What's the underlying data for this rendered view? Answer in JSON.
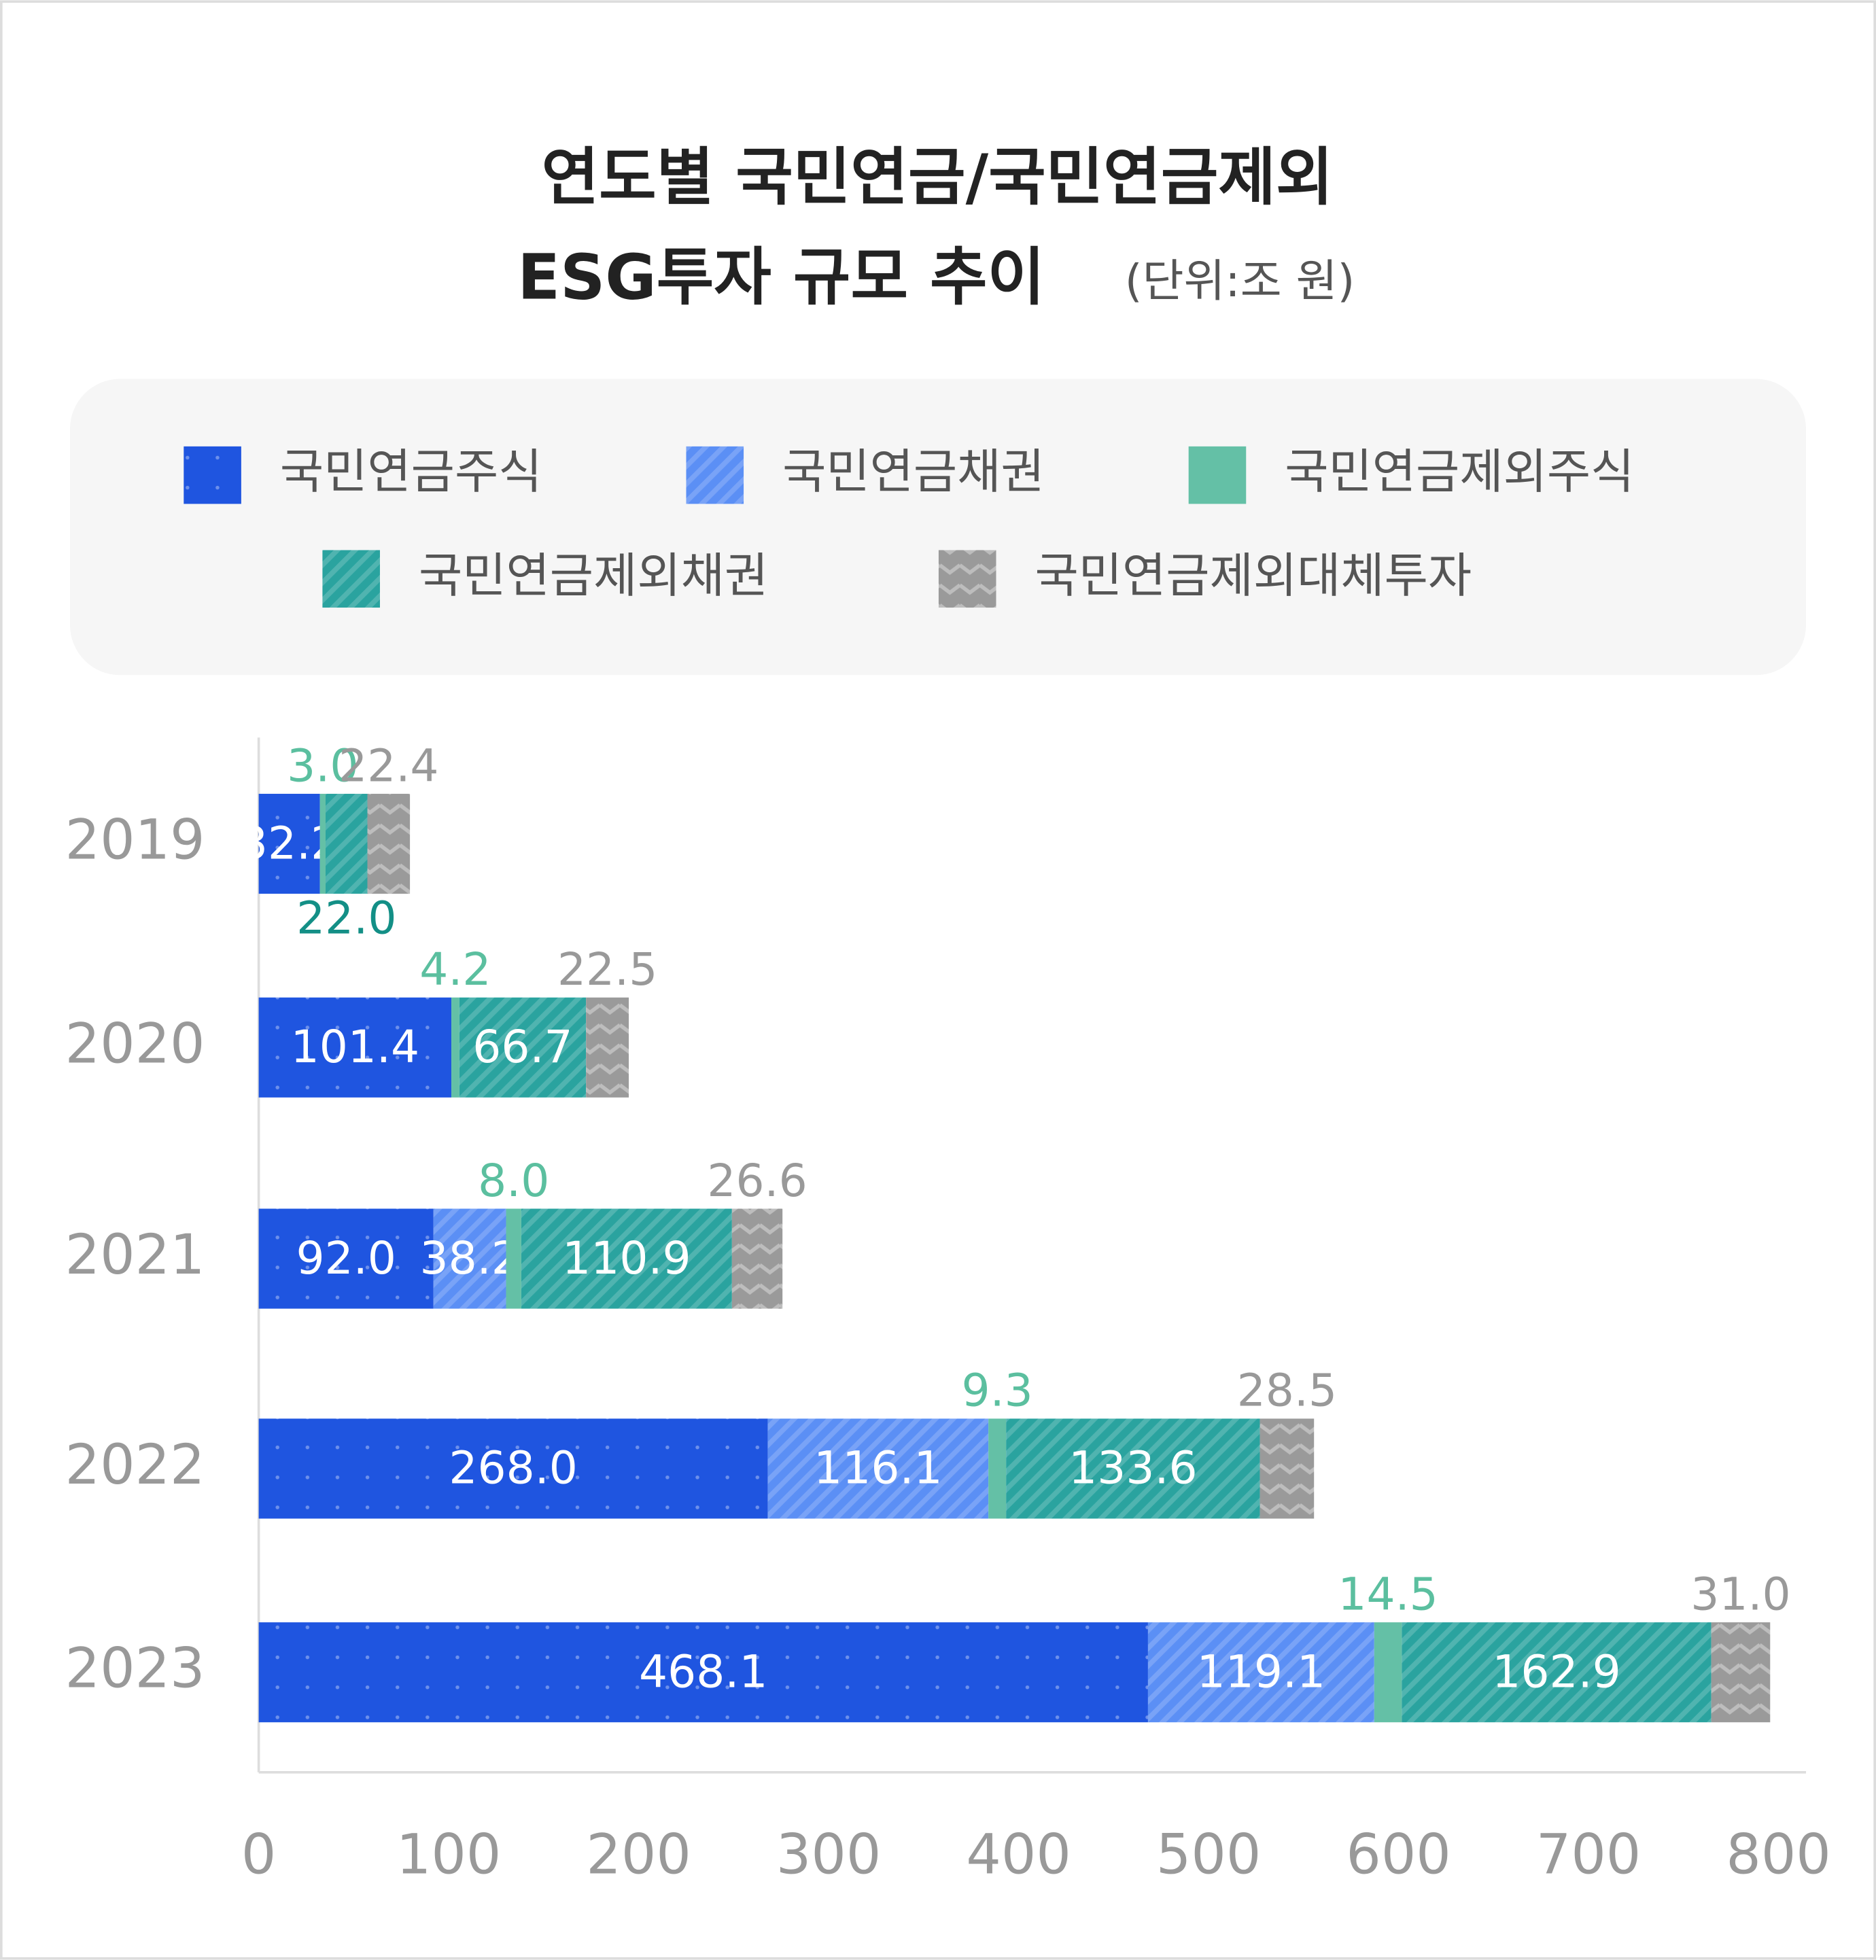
{
  "chart_data": {
    "type": "stacked-bar-horizontal",
    "title_lines": [
      "연도별 국민연금/국민연금제외",
      "ESG투자 규모 추이"
    ],
    "unit": "(단위:조 원)",
    "categories": [
      "2019",
      "2020",
      "2021",
      "2022",
      "2023"
    ],
    "series": [
      {
        "name": "국민연금주식",
        "color": "#1f55e0",
        "values": [
          32.2,
          101.4,
          92.0,
          268.0,
          468.1
        ],
        "value_labels": [
          "32.2",
          "101.4",
          "92.0",
          "268.0",
          "468.1"
        ]
      },
      {
        "name": "국민연금채권",
        "color": "#5b8ff5",
        "values": [
          null,
          null,
          38.2,
          116.1,
          119.1
        ],
        "value_labels": [
          null,
          null,
          "38.2",
          "116.1",
          "119.1"
        ]
      },
      {
        "name": "국민연금제외주식",
        "color": "#64c0a6",
        "values": [
          3.0,
          4.2,
          8.0,
          9.3,
          14.5
        ],
        "value_labels": [
          "3.0",
          "4.2",
          "8.0",
          "9.3",
          "14.5"
        ]
      },
      {
        "name": "국민연금제외채권",
        "color": "#2aa39f",
        "values": [
          22.0,
          66.7,
          110.9,
          133.6,
          162.9
        ],
        "value_labels": [
          "22.0",
          "66.7",
          "110.9",
          "133.6",
          "162.9"
        ]
      },
      {
        "name": "국민연금제외대체투자",
        "color": "#9a9a9a",
        "values": [
          22.4,
          22.5,
          26.6,
          28.5,
          31.0
        ],
        "value_labels": [
          "22.4",
          "22.5",
          "26.6",
          "28.5",
          "31.0"
        ]
      }
    ],
    "xlim": [
      0,
      800
    ],
    "xticks": [
      0,
      100,
      200,
      300,
      400,
      500,
      600,
      700,
      800
    ]
  }
}
